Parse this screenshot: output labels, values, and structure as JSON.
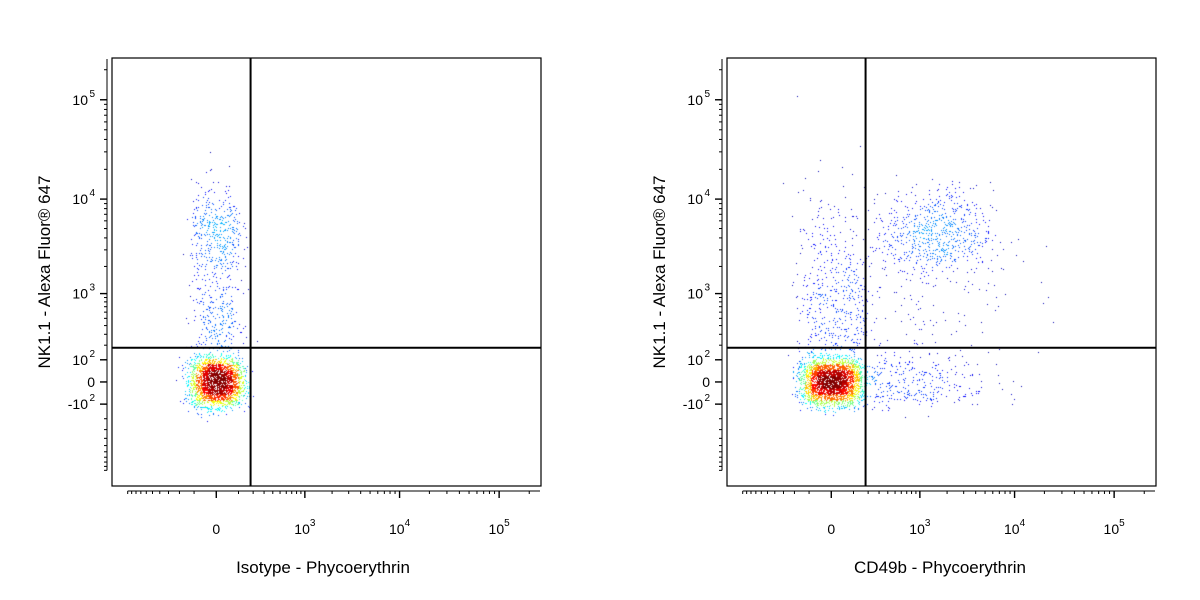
{
  "chart_data": [
    {
      "type": "scatter",
      "xlabel": "Isotype - Phycoerythrin",
      "ylabel": "NK1.1 - Alexa Fluor® 647",
      "scale": "biexponential",
      "quadrant_gates": {
        "x": 180,
        "y": 180
      },
      "x_ticks": [
        {
          "value": 0,
          "label": "0",
          "sup": ""
        },
        {
          "value": 1000,
          "label": "10",
          "sup": "3"
        },
        {
          "value": 10000,
          "label": "10",
          "sup": "4"
        },
        {
          "value": 100000,
          "label": "10",
          "sup": "5"
        }
      ],
      "y_ticks": [
        {
          "value": -100,
          "label": "-10",
          "sup": "2"
        },
        {
          "value": 0,
          "label": "0",
          "sup": ""
        },
        {
          "value": 100,
          "label": "10",
          "sup": "2"
        },
        {
          "value": 1000,
          "label": "10",
          "sup": "3"
        },
        {
          "value": 10000,
          "label": "10",
          "sup": "4"
        },
        {
          "value": 100000,
          "label": "10",
          "sup": "5"
        }
      ],
      "populations": [
        {
          "name": "",
          "center": [
            0,
            0
          ],
          "spread": [
            60,
            55
          ],
          "count": 2600
        },
        {
          "name": "",
          "center": [
            0,
            4500
          ],
          "spread": [
            60,
            0.25
          ],
          "count": 350,
          "y_log": true
        },
        {
          "name": "",
          "center": [
            0,
            600
          ],
          "spread": [
            55,
            0.45
          ],
          "count": 350,
          "y_log": true
        }
      ]
    },
    {
      "type": "scatter",
      "xlabel": "CD49b - Phycoerythrin",
      "ylabel": "NK1.1 - Alexa Fluor® 647",
      "scale": "biexponential",
      "quadrant_gates": {
        "x": 180,
        "y": 180
      },
      "x_ticks": [
        {
          "value": 0,
          "label": "0",
          "sup": ""
        },
        {
          "value": 1000,
          "label": "10",
          "sup": "3"
        },
        {
          "value": 10000,
          "label": "10",
          "sup": "4"
        },
        {
          "value": 100000,
          "label": "10",
          "sup": "5"
        }
      ],
      "y_ticks": [
        {
          "value": -100,
          "label": "-10",
          "sup": "2"
        },
        {
          "value": 0,
          "label": "0",
          "sup": ""
        },
        {
          "value": 100,
          "label": "10",
          "sup": "2"
        },
        {
          "value": 1000,
          "label": "10",
          "sup": "3"
        },
        {
          "value": 10000,
          "label": "10",
          "sup": "4"
        },
        {
          "value": 100000,
          "label": "10",
          "sup": "5"
        }
      ],
      "populations": [
        {
          "name": "",
          "center": [
            0,
            0
          ],
          "spread": [
            70,
            50
          ],
          "count": 3000
        },
        {
          "name": "",
          "center": [
            1500,
            4500
          ],
          "spread": [
            0.3,
            0.22
          ],
          "count": 650,
          "x_log": true,
          "y_log": true
        },
        {
          "name": "",
          "center": [
            0,
            800
          ],
          "spread": [
            90,
            0.6
          ],
          "count": 500,
          "y_log": true
        },
        {
          "name": "",
          "center": [
            600,
            0
          ],
          "spread": [
            0.5,
            60
          ],
          "count": 350,
          "x_log": true
        },
        {
          "name": "",
          "center": [
            700,
            1000
          ],
          "spread": [
            0.6,
            0.6
          ],
          "count": 200,
          "x_log": true,
          "y_log": true
        }
      ]
    }
  ]
}
